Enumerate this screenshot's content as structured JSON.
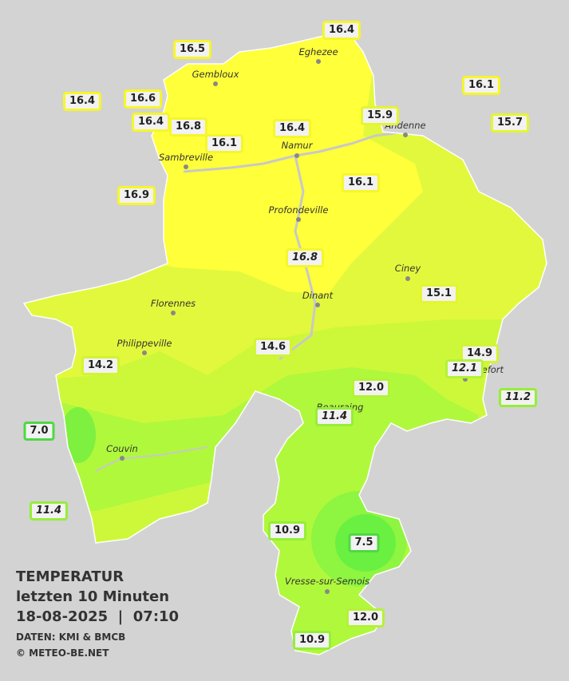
{
  "cities": [
    "Eghezee",
    "Gembloux",
    "Andenne",
    "Namur",
    "Sambreville",
    "Profondeville",
    "Ciney",
    "Florennes",
    "Dinant",
    "Philippeville",
    "Rochefort",
    "Beauraing",
    "Couvin",
    "Vresse-sur-Semois"
  ],
  "stations": [
    "16.4",
    "16.5",
    "16.1",
    "16.4",
    "16.6",
    "15.9",
    "15.7",
    "16.4",
    "16.8",
    "16.4",
    "16.1",
    "16.1",
    "16.9",
    "16.8",
    "15.1",
    "14.6",
    "14.9",
    "12.1",
    "14.2",
    "12.0",
    "11.2",
    "11.4",
    "7.0",
    "11.4",
    "10.9",
    "7.5",
    "12.0",
    "10.9"
  ],
  "caption": {
    "title": "TEMPERATUR",
    "period": "letzten 10 Minuten",
    "datetime": "18-08-2025  |  07:10",
    "source": "DATEN: KMI & BMCB",
    "copyright": "© METEO-BE.NET"
  }
}
